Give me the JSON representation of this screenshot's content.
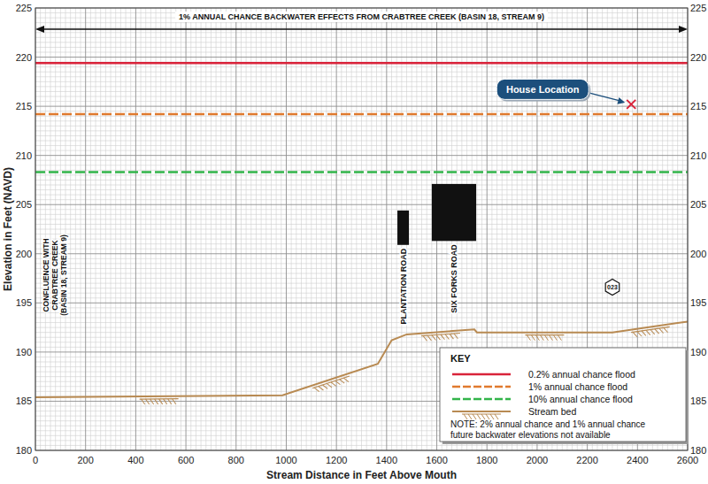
{
  "chart_data": {
    "type": "line",
    "title": "1% ANNUAL CHANCE BACKWATER EFFECTS FROM CRABTREE CREEK (BASIN 18, STREAM 9)",
    "xlabel": "Stream Distance in Feet Above Mouth",
    "ylabel": "Elevation in Feet (NAVD)",
    "xlim": [
      0,
      2600
    ],
    "xticks": [
      0,
      200,
      400,
      600,
      800,
      1000,
      1200,
      1400,
      1600,
      1800,
      2000,
      2200,
      2400,
      2600
    ],
    "ylim": [
      180,
      225
    ],
    "yticks": [
      180,
      185,
      190,
      195,
      200,
      205,
      210,
      215,
      220,
      225
    ],
    "grid": true,
    "legend": "bottom-right",
    "legend_title": "KEY",
    "note": [
      "NOTE: 2% annual chance and 1% annual chance",
      "future backwater elevations not available"
    ],
    "series": [
      {
        "name": "0.2% annual chance flood",
        "color": "#d9233a",
        "line_style": "solid",
        "x": [
          0,
          2600
        ],
        "values": [
          219.4,
          219.4
        ]
      },
      {
        "name": "1% annual chance flood",
        "color": "#e07a2e",
        "line_style": "dashed",
        "x": [
          0,
          2600
        ],
        "values": [
          214.2,
          214.2
        ]
      },
      {
        "name": "10% annual chance flood",
        "color": "#32b44a",
        "line_style": "dashed",
        "x": [
          0,
          2600
        ],
        "values": [
          208.3,
          208.3
        ]
      },
      {
        "name": "Stream bed",
        "color": "#b88a52",
        "line_style": "solid",
        "x": [
          0,
          985,
          1365,
          1420,
          1480,
          1750,
          1760,
          2300,
          2600
        ],
        "values": [
          185.4,
          185.6,
          188.8,
          191.2,
          191.8,
          192.3,
          192.0,
          192.0,
          193.1
        ]
      }
    ],
    "bridges": [
      {
        "name": "PLANTATION ROAD",
        "x": [
          1443,
          1489
        ],
        "bottom": 200.9,
        "top": 204.4
      },
      {
        "name": "SIX FORKS ROAD",
        "x": [
          1580,
          1757
        ],
        "bottom": 201.3,
        "top": 207.1
      }
    ],
    "confluence_label": [
      "CONFLUENCE WITH",
      "CRABTREE CREEK",
      "(BASIN 18, STREAM 9)"
    ],
    "house": {
      "label": "House Location",
      "x": 2375,
      "y": 215.2
    },
    "cross_sections": [
      {
        "label": "023",
        "x": 2300,
        "y": 196.6
      }
    ]
  }
}
